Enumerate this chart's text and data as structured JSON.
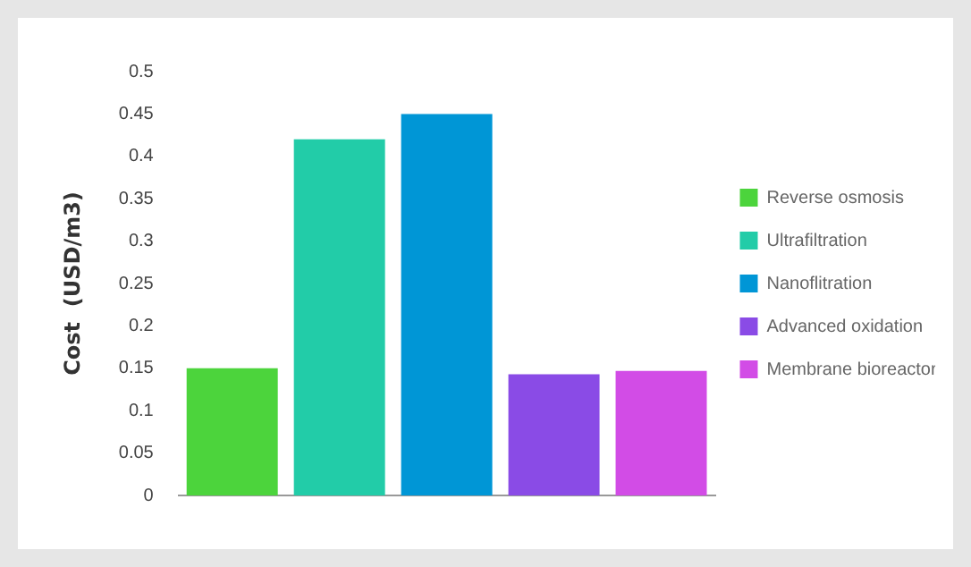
{
  "chart_data": {
    "type": "bar",
    "ylabel": "Cost  (USD/m3)",
    "categories": [
      null
    ],
    "series": [
      {
        "name": "Reverse osmosis",
        "color": "#4cd43c",
        "values": [
          0.15
        ]
      },
      {
        "name": "Ultrafiltration",
        "color": "#22cca8",
        "values": [
          0.42
        ]
      },
      {
        "name": "Nanoflitration",
        "color": "#0096d6",
        "values": [
          0.45
        ]
      },
      {
        "name": "Advanced oxidation",
        "color": "#8a4be6",
        "values": [
          0.143
        ]
      },
      {
        "name": "Membrane bioreactor",
        "color": "#d24ce6",
        "values": [
          0.147
        ]
      }
    ],
    "ylim": [
      0,
      0.5
    ],
    "yticks": [
      0,
      0.05,
      0.1,
      0.15,
      0.2,
      0.25,
      0.3,
      0.35,
      0.4,
      0.45,
      0.5
    ],
    "grid": false,
    "legend": "right"
  }
}
